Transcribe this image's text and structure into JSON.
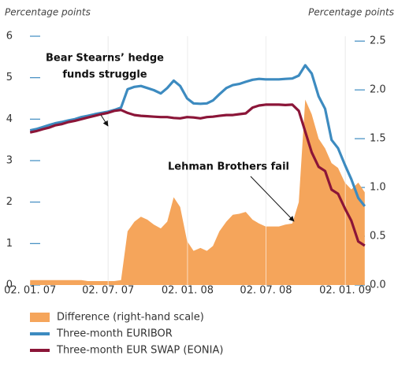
{
  "chart_data": {
    "type": "line",
    "y_label": "Percentage points",
    "y2_label": "Percentage points",
    "x": [
      "2007-01-02",
      "2007-01-16",
      "2007-02-01",
      "2007-02-16",
      "2007-03-01",
      "2007-03-16",
      "2007-04-01",
      "2007-04-16",
      "2007-05-01",
      "2007-05-16",
      "2007-06-01",
      "2007-06-16",
      "2007-07-01",
      "2007-07-16",
      "2007-08-01",
      "2007-08-16",
      "2007-09-01",
      "2007-09-16",
      "2007-10-01",
      "2007-10-16",
      "2007-11-01",
      "2007-11-16",
      "2007-12-01",
      "2007-12-16",
      "2008-01-01",
      "2008-01-16",
      "2008-02-01",
      "2008-02-16",
      "2008-03-01",
      "2008-03-16",
      "2008-04-01",
      "2008-04-16",
      "2008-05-01",
      "2008-05-16",
      "2008-06-01",
      "2008-06-16",
      "2008-07-01",
      "2008-07-16",
      "2008-08-01",
      "2008-08-16",
      "2008-09-01",
      "2008-09-16",
      "2008-10-01",
      "2008-10-16",
      "2008-11-01",
      "2008-11-16",
      "2008-12-01",
      "2008-12-16",
      "2009-01-01",
      "2009-01-16",
      "2009-02-01",
      "2009-02-16"
    ],
    "series": [
      {
        "name": "Difference (right-hand scale)",
        "type": "area",
        "axis": "y2",
        "color": "#f5a55b",
        "values": [
          0.05,
          0.05,
          0.05,
          0.05,
          0.05,
          0.05,
          0.05,
          0.05,
          0.05,
          0.04,
          0.04,
          0.04,
          0.04,
          0.04,
          0.05,
          0.55,
          0.65,
          0.7,
          0.67,
          0.62,
          0.58,
          0.65,
          0.9,
          0.8,
          0.45,
          0.35,
          0.38,
          0.35,
          0.4,
          0.55,
          0.65,
          0.72,
          0.73,
          0.75,
          0.67,
          0.63,
          0.6,
          0.6,
          0.6,
          0.62,
          0.63,
          0.85,
          1.9,
          1.75,
          1.5,
          1.4,
          1.25,
          1.2,
          1.05,
          0.98,
          1.05,
          0.95
        ]
      },
      {
        "name": "Three-month EURIBOR",
        "type": "line",
        "color": "#3d8bc0",
        "values": [
          3.73,
          3.76,
          3.81,
          3.86,
          3.9,
          3.93,
          3.97,
          4.0,
          4.05,
          4.08,
          4.12,
          4.15,
          4.18,
          4.22,
          4.28,
          4.72,
          4.78,
          4.8,
          4.75,
          4.7,
          4.62,
          4.75,
          4.93,
          4.8,
          4.5,
          4.38,
          4.37,
          4.38,
          4.45,
          4.6,
          4.75,
          4.82,
          4.85,
          4.9,
          4.95,
          4.97,
          4.96,
          4.96,
          4.96,
          4.97,
          4.98,
          5.05,
          5.3,
          5.1,
          4.55,
          4.25,
          3.5,
          3.3,
          2.9,
          2.55,
          2.1,
          1.9
        ]
      },
      {
        "name": "Three-month EUR SWAP (EONIA)",
        "type": "line",
        "color": "#8b1538",
        "values": [
          3.68,
          3.71,
          3.76,
          3.8,
          3.85,
          3.88,
          3.93,
          3.96,
          4.0,
          4.04,
          4.08,
          4.12,
          4.15,
          4.2,
          4.22,
          4.15,
          4.1,
          4.08,
          4.07,
          4.06,
          4.05,
          4.05,
          4.03,
          4.02,
          4.05,
          4.04,
          4.02,
          4.05,
          4.06,
          4.08,
          4.1,
          4.1,
          4.12,
          4.14,
          4.28,
          4.33,
          4.35,
          4.35,
          4.35,
          4.34,
          4.35,
          4.2,
          3.7,
          3.2,
          2.85,
          2.75,
          2.3,
          2.2,
          1.85,
          1.55,
          1.05,
          0.95
        ]
      }
    ],
    "xlim": [
      "2006-12-29",
      "2009-02-20"
    ],
    "xticks": [
      {
        "value": "2007-01-02",
        "label": "02. 01. 07"
      },
      {
        "value": "2007-07-02",
        "label": "02. 07. 07"
      },
      {
        "value": "2008-01-02",
        "label": "02. 01. 08"
      },
      {
        "value": "2008-07-02",
        "label": "02. 07. 08"
      },
      {
        "value": "2009-01-02",
        "label": "02. 01. 09"
      }
    ],
    "ylim": [
      0,
      6
    ],
    "yticks": [
      0,
      1,
      2,
      3,
      4,
      5,
      6
    ],
    "y2lim": [
      0,
      2.55
    ],
    "y2ticks": [
      {
        "value": 0,
        "label": "0.0"
      },
      0.5,
      {
        "value": 1,
        "label": "1.0"
      },
      1.5,
      {
        "value": 2,
        "label": "2.0"
      },
      2.5
    ],
    "grid": true,
    "annotations": [
      {
        "lines": [
          "Bear Stearns’ hedge",
          "funds struggle"
        ]
      },
      {
        "lines": [
          "Lehman Brothers fail"
        ]
      }
    ]
  }
}
